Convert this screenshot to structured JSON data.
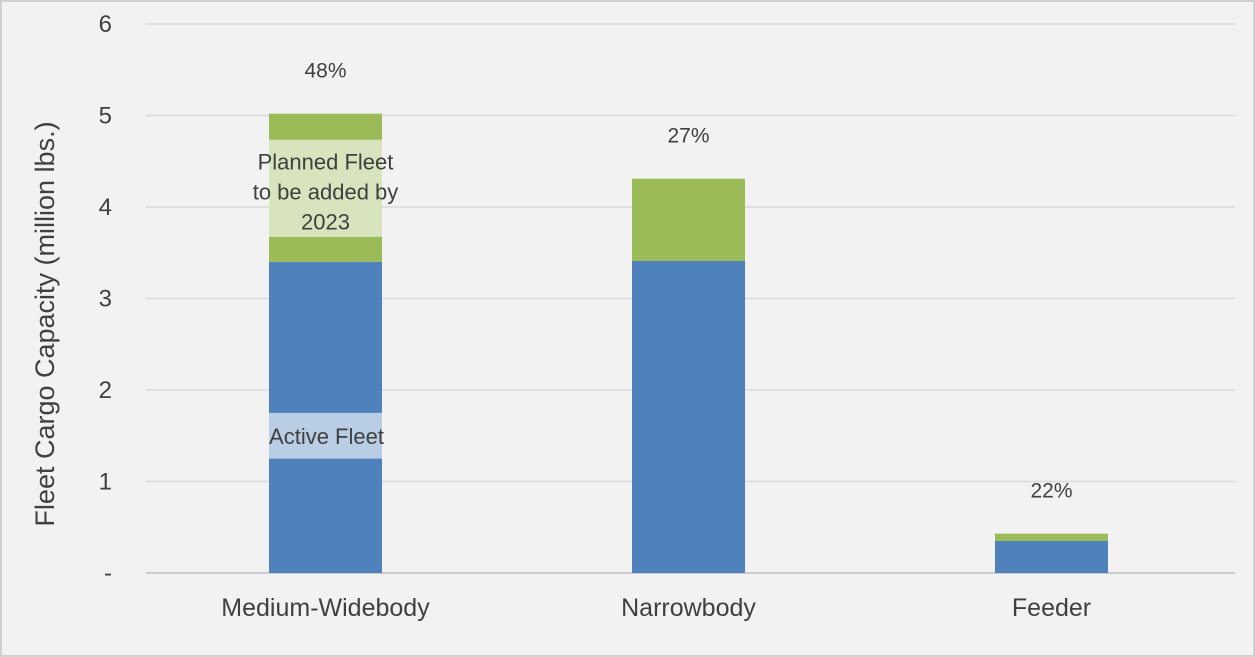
{
  "chart_data": {
    "type": "bar",
    "stacked": true,
    "ylabel": "Fleet Cargo Capacity (million lbs.)",
    "ylim": [
      0,
      6
    ],
    "yticks": [
      {
        "value": 0,
        "label": "-"
      },
      {
        "value": 1,
        "label": "1"
      },
      {
        "value": 2,
        "label": "2"
      },
      {
        "value": 3,
        "label": "3"
      },
      {
        "value": 4,
        "label": "4"
      },
      {
        "value": 5,
        "label": "5"
      },
      {
        "value": 6,
        "label": "6"
      }
    ],
    "grid": true,
    "categories": [
      "Medium-Widebody",
      "Narrowbody",
      "Feeder"
    ],
    "series": [
      {
        "name": "Active Fleet",
        "color": "#4f81bd",
        "values": [
          3.4,
          3.41,
          0.35
        ]
      },
      {
        "name": "Planned Fleet to be added by 2023",
        "color": "#9bbb59",
        "values": [
          1.62,
          0.9,
          0.08
        ]
      }
    ],
    "percent_labels": [
      "48%",
      "27%",
      "22%"
    ],
    "annotations": {
      "planned": [
        "Planned Fleet",
        "to be added by",
        "2023"
      ],
      "active": "Active Fleet"
    }
  }
}
